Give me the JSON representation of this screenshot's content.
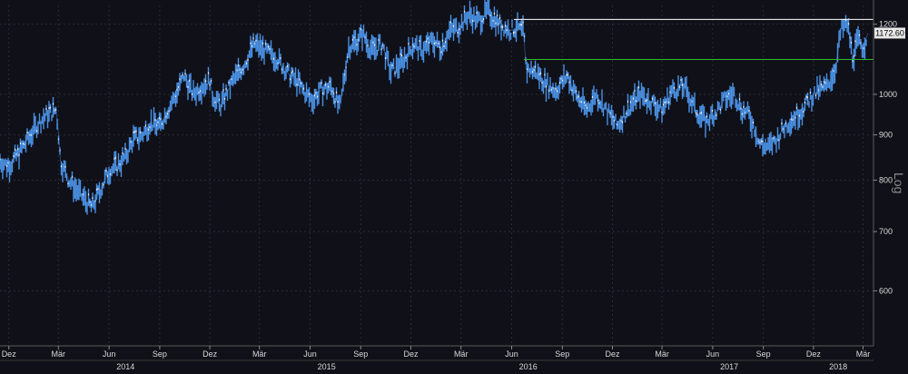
{
  "chart_data": {
    "type": "line",
    "style": "candlestick-like price bars, dark theme",
    "y_scale": "log",
    "y_axis_label": "Log",
    "y_axis_side": "right",
    "ylim": [
      520,
      1260
    ],
    "y_ticks": [
      600,
      700,
      800,
      900,
      1000,
      1200
    ],
    "y_tick_labels": [
      "600",
      "700",
      "800",
      "900",
      "1000",
      "1200"
    ],
    "last_value": 1172.6,
    "last_value_label": "1172.60",
    "grid": true,
    "x_ticks": [
      "2013-12-01",
      "2014-03-01",
      "2014-06-01",
      "2014-09-01",
      "2014-12-01",
      "2015-03-01",
      "2015-06-01",
      "2015-09-01",
      "2015-12-01",
      "2016-03-01",
      "2016-06-01",
      "2016-09-01",
      "2016-12-01",
      "2017-03-01",
      "2017-06-01",
      "2017-09-01",
      "2017-12-01",
      "2018-03-01"
    ],
    "x_tick_labels": [
      "Dez",
      "Mär",
      "Jun",
      "Sep",
      "Dez",
      "Mär",
      "Jun",
      "Sep",
      "Dez",
      "Mär",
      "Jun",
      "Sep",
      "Dez",
      "Mär",
      "Jun",
      "Sep",
      "Dez",
      "Mär"
    ],
    "year_labels": [
      {
        "date": "2014-07-01",
        "label": "2014"
      },
      {
        "date": "2015-07-01",
        "label": "2015"
      },
      {
        "date": "2016-07-01",
        "label": "2016"
      },
      {
        "date": "2017-07-01",
        "label": "2017"
      },
      {
        "date": "2018-01-15",
        "label": "2018"
      }
    ],
    "xlim": [
      "2013-11-15",
      "2018-03-20"
    ],
    "series": [
      {
        "color": "#4a90e2",
        "highlight_color": "#ffffff",
        "x": [
          "2013-11-15",
          "2013-12-01",
          "2013-12-20",
          "2014-01-10",
          "2014-01-25",
          "2014-02-10",
          "2014-02-25",
          "2014-03-01",
          "2014-03-05",
          "2014-03-20",
          "2014-04-10",
          "2014-05-01",
          "2014-05-20",
          "2014-06-01",
          "2014-06-15",
          "2014-07-01",
          "2014-07-15",
          "2014-08-01",
          "2014-08-15",
          "2014-09-01",
          "2014-09-15",
          "2014-10-01",
          "2014-10-15",
          "2014-11-01",
          "2014-11-15",
          "2014-12-01",
          "2014-12-05",
          "2014-12-20",
          "2015-01-10",
          "2015-02-01",
          "2015-02-20",
          "2015-03-10",
          "2015-04-01",
          "2015-04-20",
          "2015-05-10",
          "2015-05-25",
          "2015-06-05",
          "2015-06-20",
          "2015-07-10",
          "2015-07-25",
          "2015-08-10",
          "2015-08-25",
          "2015-09-05",
          "2015-09-20",
          "2015-10-10",
          "2015-10-25",
          "2015-11-10",
          "2015-11-25",
          "2015-12-05",
          "2015-12-20",
          "2016-01-10",
          "2016-01-25",
          "2016-02-10",
          "2016-02-25",
          "2016-03-15",
          "2016-04-01",
          "2016-04-20",
          "2016-05-10",
          "2016-05-30",
          "2016-06-10",
          "2016-06-23",
          "2016-06-27",
          "2016-07-15",
          "2016-08-01",
          "2016-08-20",
          "2016-09-10",
          "2016-09-25",
          "2016-10-15",
          "2016-11-01",
          "2016-11-20",
          "2016-12-10",
          "2017-01-01",
          "2017-01-20",
          "2017-02-10",
          "2017-03-01",
          "2017-03-20",
          "2017-04-10",
          "2017-05-01",
          "2017-05-20",
          "2017-06-10",
          "2017-06-25",
          "2017-07-10",
          "2017-07-25",
          "2017-08-05",
          "2017-08-15",
          "2017-08-25",
          "2017-09-10",
          "2017-09-25",
          "2017-10-10",
          "2017-10-25",
          "2017-11-10",
          "2017-11-25",
          "2017-12-10",
          "2017-12-25",
          "2018-01-10",
          "2018-01-20",
          "2018-02-01",
          "2018-02-10",
          "2018-02-20",
          "2018-03-01",
          "2018-03-10"
        ],
        "y": [
          840,
          830,
          860,
          900,
          930,
          950,
          960,
          905,
          840,
          800,
          770,
          745,
          790,
          820,
          830,
          850,
          890,
          900,
          930,
          920,
          960,
          1000,
          1050,
          1000,
          1020,
          1040,
          1000,
          970,
          1030,
          1080,
          1140,
          1120,
          1100,
          1060,
          1030,
          1000,
          985,
          1010,
          1020,
          960,
          1130,
          1150,
          1170,
          1120,
          1140,
          1060,
          1080,
          1110,
          1140,
          1120,
          1150,
          1130,
          1180,
          1190,
          1230,
          1210,
          1240,
          1200,
          1180,
          1190,
          1175,
          1070,
          1060,
          1030,
          1010,
          1050,
          1000,
          960,
          1000,
          960,
          920,
          970,
          1000,
          980,
          960,
          1010,
          1020,
          960,
          930,
          960,
          990,
          1000,
          960,
          950,
          920,
          880,
          870,
          890,
          920,
          940,
          960,
          990,
          1010,
          1020,
          1070,
          1180,
          1200,
          1100,
          1150,
          1130,
          1172.6
        ]
      }
    ],
    "reference_lines": [
      {
        "color": "#ffffff",
        "value": 1215,
        "from": "2016-06-05",
        "to": "2018-03-20"
      },
      {
        "color": "#2fb82f",
        "value": 1095,
        "from": "2016-06-23",
        "to": "2018-03-20"
      }
    ]
  }
}
